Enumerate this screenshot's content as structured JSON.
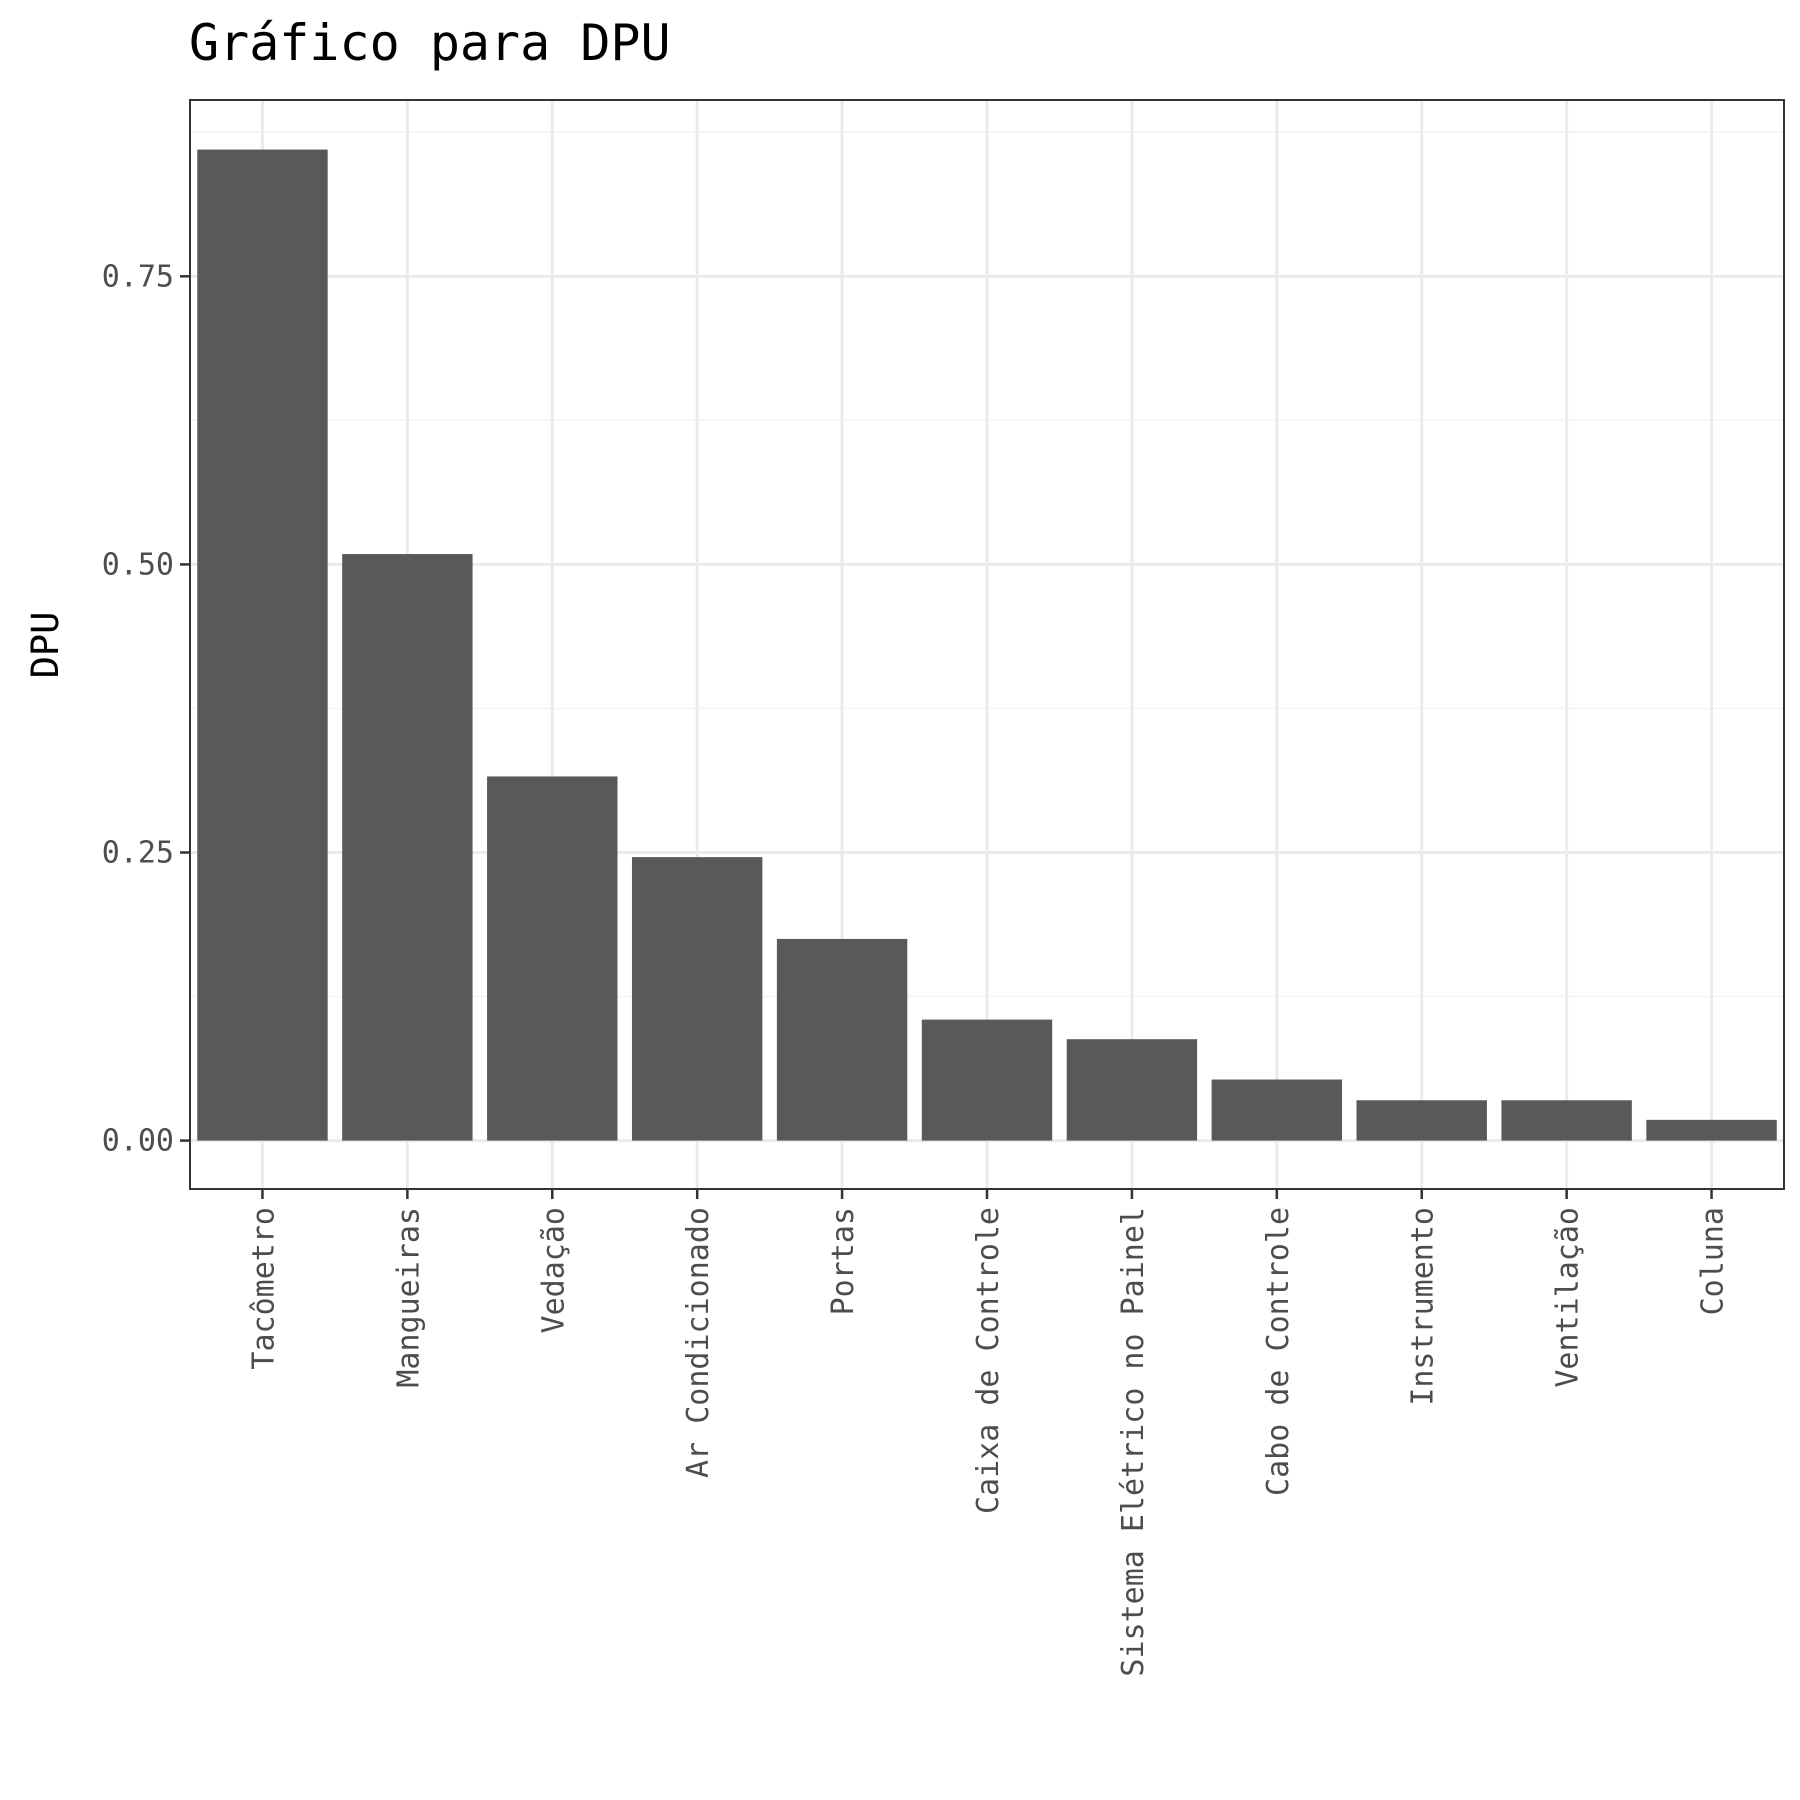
{
  "chart_data": {
    "type": "bar",
    "title": "Gráfico para DPU",
    "xlabel": "",
    "ylabel": "DPU",
    "categories": [
      "Tacômetro",
      "Mangueiras",
      "Vedação",
      "Ar Condicionado",
      "Portas",
      "Caixa de Controle",
      "Sistema Elétrico no Painel",
      "Cabo de Controle",
      "Instrumento",
      "Ventilação",
      "Coluna"
    ],
    "values": [
      0.86,
      0.509,
      0.316,
      0.246,
      0.175,
      0.105,
      0.088,
      0.053,
      0.035,
      0.035,
      0.018
    ],
    "ylim": [
      -0.042,
      0.903
    ],
    "yticks": [
      0.0,
      0.25,
      0.5,
      0.75
    ],
    "ytick_labels": [
      "0.00",
      "0.25",
      "0.50",
      "0.75"
    ],
    "grid": true,
    "bar_color": "#595959"
  }
}
